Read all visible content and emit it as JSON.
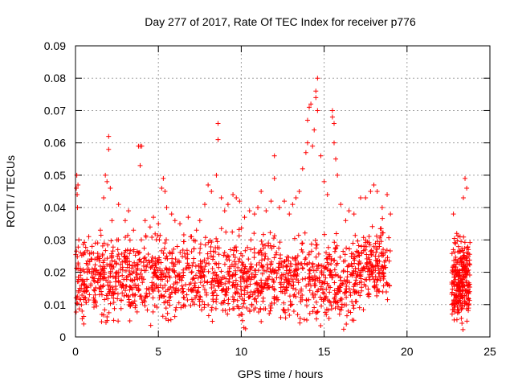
{
  "chart_data": {
    "type": "scatter",
    "title": "Day 277 of 2017, Rate Of TEC Index for receiver p776",
    "xlabel": "GPS time / hours",
    "ylabel": "ROTI / TECUs",
    "xlim": [
      0,
      25
    ],
    "ylim": [
      0,
      0.09
    ],
    "xticks": [
      0,
      5,
      10,
      15,
      20,
      25
    ],
    "xtick_labels": [
      "0",
      "5",
      "10",
      "15",
      "20",
      "25"
    ],
    "yticks": [
      0,
      0.01,
      0.02,
      0.03,
      0.04,
      0.05,
      0.06,
      0.07,
      0.08,
      0.09
    ],
    "ytick_labels": [
      "0",
      "0.01",
      "0.02",
      "0.03",
      "0.04",
      "0.05",
      "0.06",
      "0.07",
      "0.08",
      "0.09"
    ],
    "grid": true,
    "marker": "plus",
    "color": "#ff0000",
    "series": [
      {
        "points": [
          [
            0.05,
            0.046
          ],
          [
            0.08,
            0.05
          ],
          [
            0.1,
            0.044
          ],
          [
            0.12,
            0.04
          ],
          [
            0.15,
            0.047
          ],
          [
            0.2,
            0.03
          ],
          [
            0.3,
            0.026
          ],
          [
            0.4,
            0.008
          ],
          [
            0.5,
            0.004
          ],
          [
            0.6,
            0.012
          ],
          [
            0.8,
            0.031
          ],
          [
            1.0,
            0.028
          ],
          [
            1.2,
            0.029
          ],
          [
            1.5,
            0.033
          ],
          [
            1.7,
            0.043
          ],
          [
            1.8,
            0.05
          ],
          [
            1.9,
            0.048
          ],
          [
            2.0,
            0.062
          ],
          [
            2.0,
            0.058
          ],
          [
            2.1,
            0.046
          ],
          [
            2.2,
            0.036
          ],
          [
            2.5,
            0.03
          ],
          [
            2.6,
            0.041
          ],
          [
            3.0,
            0.036
          ],
          [
            3.2,
            0.039
          ],
          [
            3.5,
            0.033
          ],
          [
            3.8,
            0.059
          ],
          [
            3.9,
            0.059
          ],
          [
            3.9,
            0.053
          ],
          [
            4.0,
            0.059
          ],
          [
            4.2,
            0.036
          ],
          [
            4.5,
            0.034
          ],
          [
            4.7,
            0.037
          ],
          [
            5.0,
            0.035
          ],
          [
            5.2,
            0.046
          ],
          [
            5.3,
            0.049
          ],
          [
            5.4,
            0.045
          ],
          [
            5.5,
            0.04
          ],
          [
            5.8,
            0.038
          ],
          [
            6.0,
            0.036
          ],
          [
            6.3,
            0.035
          ],
          [
            6.8,
            0.037
          ],
          [
            7.0,
            0.031
          ],
          [
            7.3,
            0.033
          ],
          [
            7.5,
            0.036
          ],
          [
            7.8,
            0.041
          ],
          [
            8.0,
            0.047
          ],
          [
            8.2,
            0.045
          ],
          [
            8.5,
            0.05
          ],
          [
            8.6,
            0.066
          ],
          [
            8.6,
            0.061
          ],
          [
            8.8,
            0.043
          ],
          [
            9.0,
            0.039
          ],
          [
            9.2,
            0.041
          ],
          [
            9.5,
            0.044
          ],
          [
            9.7,
            0.043
          ],
          [
            9.9,
            0.042
          ],
          [
            10.2,
            0.037
          ],
          [
            10.5,
            0.039
          ],
          [
            10.8,
            0.038
          ],
          [
            11.0,
            0.04
          ],
          [
            11.2,
            0.045
          ],
          [
            11.5,
            0.039
          ],
          [
            11.8,
            0.042
          ],
          [
            12.0,
            0.056
          ],
          [
            12.0,
            0.049
          ],
          [
            12.3,
            0.04
          ],
          [
            12.6,
            0.042
          ],
          [
            12.9,
            0.038
          ],
          [
            13.1,
            0.041
          ],
          [
            13.3,
            0.043
          ],
          [
            13.5,
            0.045
          ],
          [
            13.7,
            0.052
          ],
          [
            13.9,
            0.057
          ],
          [
            14.0,
            0.06
          ],
          [
            14.0,
            0.067
          ],
          [
            14.1,
            0.071
          ],
          [
            14.2,
            0.072
          ],
          [
            14.3,
            0.059
          ],
          [
            14.4,
            0.064
          ],
          [
            14.5,
            0.074
          ],
          [
            14.5,
            0.076
          ],
          [
            14.6,
            0.08
          ],
          [
            14.6,
            0.07
          ],
          [
            14.8,
            0.056
          ],
          [
            15.0,
            0.048
          ],
          [
            15.2,
            0.044
          ],
          [
            15.5,
            0.068
          ],
          [
            15.5,
            0.07
          ],
          [
            15.6,
            0.066
          ],
          [
            15.6,
            0.06
          ],
          [
            15.7,
            0.055
          ],
          [
            15.8,
            0.05
          ],
          [
            16.0,
            0.041
          ],
          [
            16.3,
            0.036
          ],
          [
            16.5,
            0.039
          ],
          [
            16.8,
            0.038
          ],
          [
            17.2,
            0.043
          ],
          [
            17.5,
            0.043
          ],
          [
            17.8,
            0.045
          ],
          [
            18.0,
            0.047
          ],
          [
            18.2,
            0.045
          ],
          [
            18.5,
            0.04
          ],
          [
            18.8,
            0.044
          ],
          [
            19.0,
            0.038
          ],
          [
            22.8,
            0.038
          ],
          [
            23.0,
            0.032
          ],
          [
            23.2,
            0.031
          ],
          [
            23.4,
            0.043
          ],
          [
            23.5,
            0.049
          ],
          [
            23.6,
            0.046
          ],
          [
            23.7,
            0.027
          ]
        ]
      }
    ]
  }
}
